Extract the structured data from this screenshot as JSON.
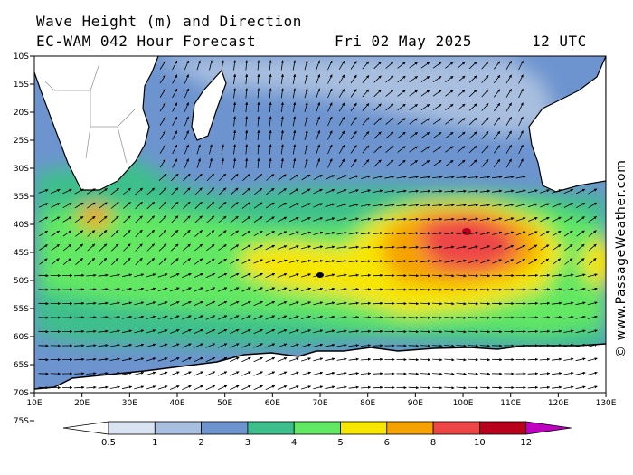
{
  "header": {
    "line1": "Wave Height (m) and Direction",
    "line2_model": "EC-WAM 042 Hour Forecast",
    "line2_date": "Fri 02 May 2025",
    "line2_time": "12 UTC"
  },
  "credit": "© www.PassageWeather.com",
  "axes": {
    "lat_labels": [
      "10S",
      "15S",
      "20S",
      "25S",
      "30S",
      "35S",
      "40S",
      "45S",
      "50S",
      "55S",
      "60S",
      "65S",
      "70S",
      "75S"
    ],
    "lon_labels": [
      "10E",
      "20E",
      "30E",
      "40E",
      "50E",
      "60E",
      "70E",
      "80E",
      "90E",
      "100E",
      "110E",
      "120E",
      "130E"
    ]
  },
  "legend": {
    "labels": [
      "0.5",
      "1",
      "2",
      "3",
      "4",
      "5",
      "6",
      "8",
      "10",
      "12"
    ],
    "colors": [
      "#ffffff",
      "#d9e3f1",
      "#a9bfdf",
      "#6d94cf",
      "#3cbf8c",
      "#62e862",
      "#f7e600",
      "#f5a200",
      "#ee4546",
      "#b8001c",
      "#c000c0"
    ]
  },
  "map_colors": {
    "land": "#ffffff",
    "coast": "#000000",
    "border": "#9a9a9a"
  }
}
